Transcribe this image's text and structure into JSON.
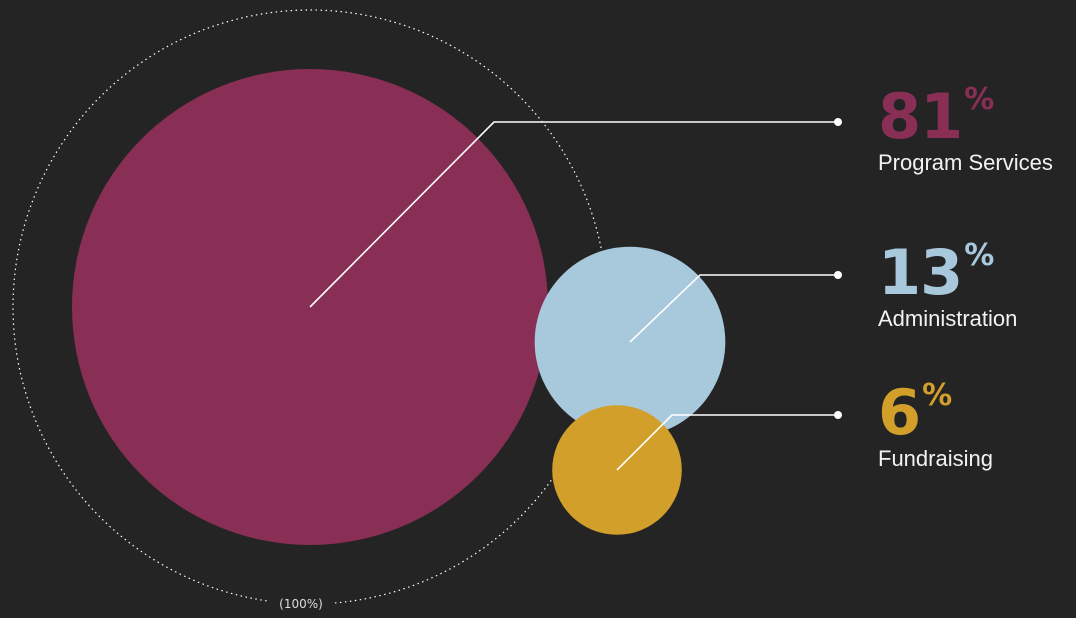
{
  "chart_data": {
    "type": "bubble",
    "total_label": "(100%)",
    "categories": [
      "Program Services",
      "Administration",
      "Fundraising"
    ],
    "values": [
      81,
      13,
      6
    ],
    "value_suffix": "%",
    "colors": [
      "#892e55",
      "#a8c8dc",
      "#d19f2a"
    ],
    "series": [
      {
        "label": "Program Services",
        "value": 81,
        "display": "81",
        "color": "#892e55"
      },
      {
        "label": "Administration",
        "value": 13,
        "display": "13",
        "color": "#a8c8dc"
      },
      {
        "label": "Fundraising",
        "value": 6,
        "display": "6",
        "color": "#d19f2a"
      }
    ]
  },
  "colors": {
    "background": "#242424",
    "leader_line": "#ffffff",
    "total_ring": "#ffffff"
  }
}
